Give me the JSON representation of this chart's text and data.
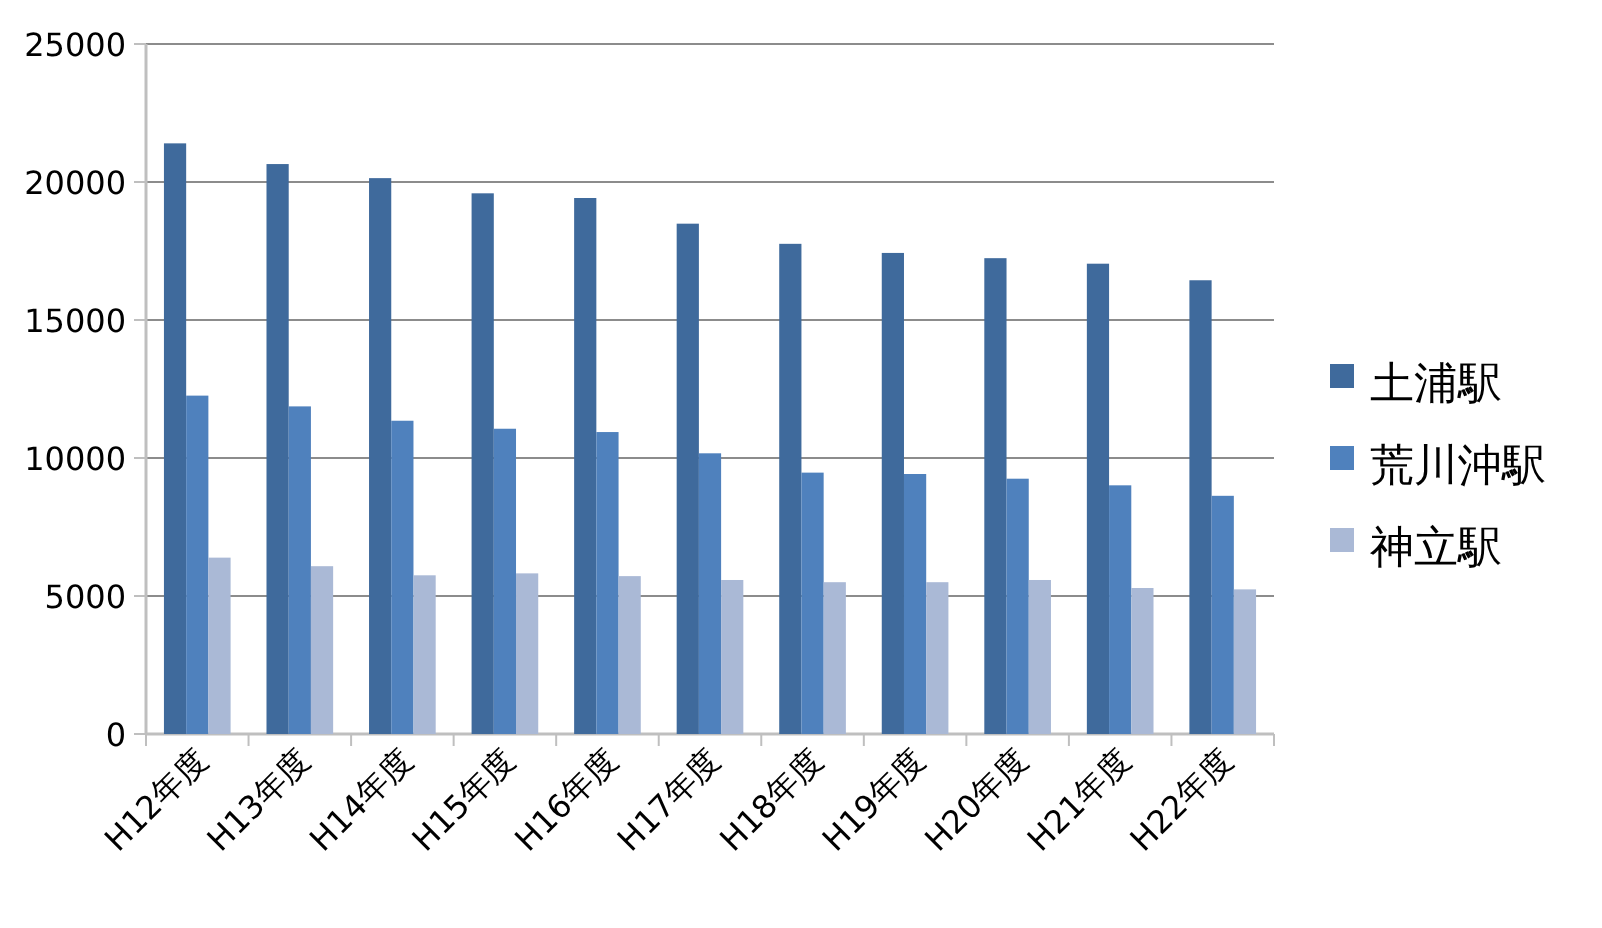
{
  "chart_data": {
    "type": "bar",
    "categories": [
      "H12年度",
      "H13年度",
      "H14年度",
      "H15年度",
      "H16年度",
      "H17年度",
      "H18年度",
      "H19年度",
      "H20年度",
      "H21年度",
      "H22年度"
    ],
    "series": [
      {
        "name": "土浦駅",
        "color": "#3f6a9c",
        "values": [
          21400,
          20650,
          20140,
          19590,
          19420,
          18490,
          17760,
          17430,
          17240,
          17040,
          16440
        ]
      },
      {
        "name": "荒川沖駅",
        "color": "#4f81bd",
        "values": [
          12260,
          11870,
          11350,
          11060,
          10940,
          10170,
          9470,
          9420,
          9250,
          9010,
          8630
        ]
      },
      {
        "name": "神立駅",
        "color": "#aab9d6",
        "values": [
          6390,
          6080,
          5750,
          5820,
          5720,
          5580,
          5500,
          5500,
          5580,
          5290,
          5240
        ]
      }
    ],
    "ylim": [
      0,
      25000
    ],
    "yticks": [
      0,
      5000,
      10000,
      15000,
      20000,
      25000
    ],
    "grid": "y",
    "legend": "right"
  }
}
